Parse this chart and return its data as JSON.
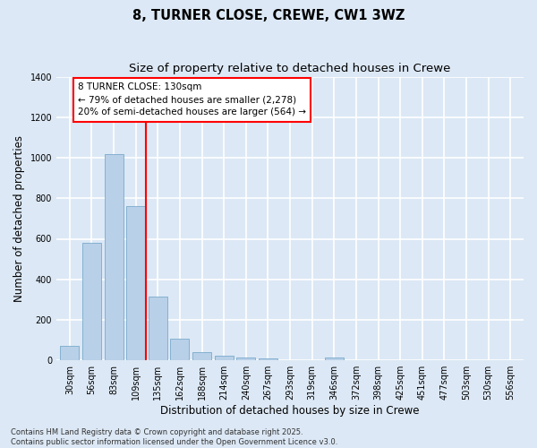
{
  "title": "8, TURNER CLOSE, CREWE, CW1 3WZ",
  "subtitle": "Size of property relative to detached houses in Crewe",
  "xlabel": "Distribution of detached houses by size in Crewe",
  "ylabel": "Number of detached properties",
  "categories": [
    "30sqm",
    "56sqm",
    "83sqm",
    "109sqm",
    "135sqm",
    "162sqm",
    "188sqm",
    "214sqm",
    "240sqm",
    "267sqm",
    "293sqm",
    "319sqm",
    "346sqm",
    "372sqm",
    "398sqm",
    "425sqm",
    "451sqm",
    "477sqm",
    "503sqm",
    "530sqm",
    "556sqm"
  ],
  "values": [
    70,
    580,
    1020,
    760,
    315,
    105,
    42,
    25,
    13,
    8,
    0,
    0,
    12,
    0,
    0,
    0,
    0,
    0,
    0,
    0,
    0
  ],
  "bar_color": "#b8d0e8",
  "bar_edge_color": "#7aaacc",
  "background_color": "#dce8f5",
  "grid_color": "#ffffff",
  "vline_color": "red",
  "annotation_text": "8 TURNER CLOSE: 130sqm\n← 79% of detached houses are smaller (2,278)\n20% of semi-detached houses are larger (564) →",
  "ylim": [
    0,
    1400
  ],
  "yticks": [
    0,
    200,
    400,
    600,
    800,
    1000,
    1200,
    1400
  ],
  "footer": "Contains HM Land Registry data © Crown copyright and database right 2025.\nContains public sector information licensed under the Open Government Licence v3.0.",
  "title_fontsize": 10.5,
  "subtitle_fontsize": 9.5,
  "ylabel_fontsize": 8.5,
  "xlabel_fontsize": 8.5,
  "tick_fontsize": 7,
  "annotation_fontsize": 7.5,
  "footer_fontsize": 6
}
